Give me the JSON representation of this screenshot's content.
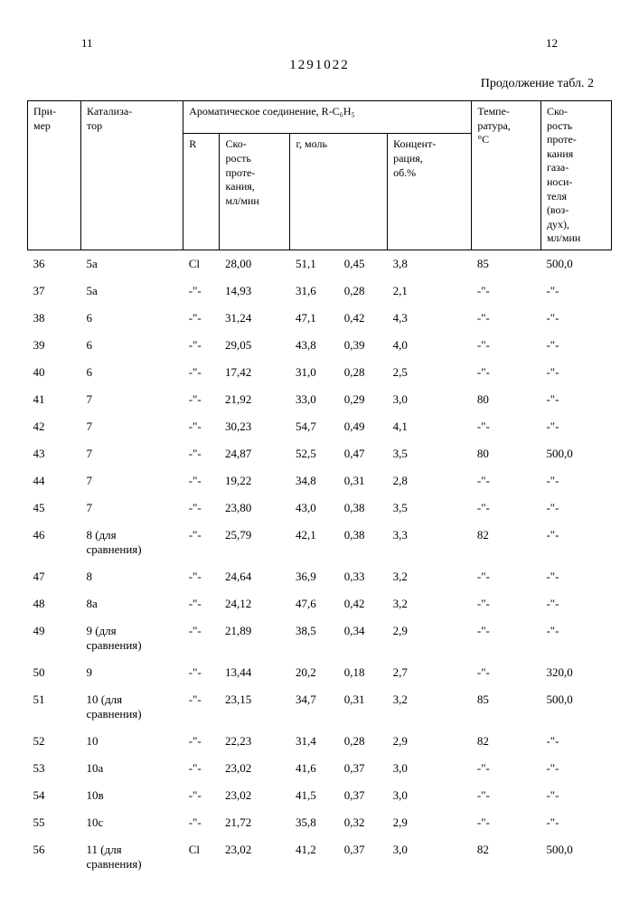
{
  "header": {
    "left_page": "11",
    "pub_number": "1291022",
    "right_page": "12",
    "continuation": "Продолжение табл. 2"
  },
  "table": {
    "columns": {
      "c1": "При-\nмер",
      "c2": "Катализа-\nтор",
      "c3_group": "Ароматическое соединение, R-C₆H₅",
      "c3a": "R",
      "c3b": "Ско-\nрость\nпроте-\nкания,\nмл/мин",
      "c3c": "г, моль",
      "c3d": "Концент-\nрация,\nоб.%",
      "c4": "Темпе-\nратура,\n°С",
      "c5": "Ско-\nрость\nпроте-\nкания\nгаза-\nноси-\nтеля\n(воз-\nдух),\nмл/мин"
    },
    "rows": [
      {
        "ex": "36",
        "cat": "5а",
        "r": "Cl",
        "rate": "28,00",
        "g": "51,1",
        "mol": "0,45",
        "conc": "3,8",
        "temp": "85",
        "flow": "500,0"
      },
      {
        "ex": "37",
        "cat": "5а",
        "r": "-\"-",
        "rate": "14,93",
        "g": "31,6",
        "mol": "0,28",
        "conc": "2,1",
        "temp": "-\"-",
        "flow": "-\"-"
      },
      {
        "ex": "38",
        "cat": "6",
        "r": "-\"-",
        "rate": "31,24",
        "g": "47,1",
        "mol": "0,42",
        "conc": "4,3",
        "temp": "-\"-",
        "flow": "-\"-"
      },
      {
        "ex": "39",
        "cat": "6",
        "r": "-\"-",
        "rate": "29,05",
        "g": "43,8",
        "mol": "0,39",
        "conc": "4,0",
        "temp": "-\"-",
        "flow": "-\"-"
      },
      {
        "ex": "40",
        "cat": "6",
        "r": "-\"-",
        "rate": "17,42",
        "g": "31,0",
        "mol": "0,28",
        "conc": "2,5",
        "temp": "-\"-",
        "flow": "-\"-"
      },
      {
        "ex": "41",
        "cat": "7",
        "r": "-\"-",
        "rate": "21,92",
        "g": "33,0",
        "mol": "0,29",
        "conc": "3,0",
        "temp": "80",
        "flow": "-\"-"
      },
      {
        "ex": "42",
        "cat": "7",
        "r": "-\"-",
        "rate": "30,23",
        "g": "54,7",
        "mol": "0,49",
        "conc": "4,1",
        "temp": "-\"-",
        "flow": "-\"-"
      },
      {
        "ex": "43",
        "cat": "7",
        "r": "-\"-",
        "rate": "24,87",
        "g": "52,5",
        "mol": "0,47",
        "conc": "3,5",
        "temp": "80",
        "flow": "500,0"
      },
      {
        "ex": "44",
        "cat": "7",
        "r": "-\"-",
        "rate": "19,22",
        "g": "34,8",
        "mol": "0,31",
        "conc": "2,8",
        "temp": "-\"-",
        "flow": "-\"-"
      },
      {
        "ex": "45",
        "cat": "7",
        "r": "-\"-",
        "rate": "23,80",
        "g": "43,0",
        "mol": "0,38",
        "conc": "3,5",
        "temp": "-\"-",
        "flow": "-\"-"
      },
      {
        "ex": "46",
        "cat": "8 (для\nсравнения)",
        "r": "-\"-",
        "rate": "25,79",
        "g": "42,1",
        "mol": "0,38",
        "conc": "3,3",
        "temp": "82",
        "flow": "-\"-"
      },
      {
        "ex": "47",
        "cat": "8",
        "r": "-\"-",
        "rate": "24,64",
        "g": "36,9",
        "mol": "0,33",
        "conc": "3,2",
        "temp": "-\"-",
        "flow": "-\"-"
      },
      {
        "ex": "48",
        "cat": "8а",
        "r": "-\"-",
        "rate": "24,12",
        "g": "47,6",
        "mol": "0,42",
        "conc": "3,2",
        "temp": "-\"-",
        "flow": "-\"-"
      },
      {
        "ex": "49",
        "cat": "9 (для\nсравнения)",
        "r": "-\"-",
        "rate": "21,89",
        "g": "38,5",
        "mol": "0,34",
        "conc": "2,9",
        "temp": "-\"-",
        "flow": "-\"-"
      },
      {
        "ex": "50",
        "cat": "9",
        "r": "-\"-",
        "rate": "13,44",
        "g": "20,2",
        "mol": "0,18",
        "conc": "2,7",
        "temp": "-\"-",
        "flow": "320,0"
      },
      {
        "ex": "51",
        "cat": "10 (для\nсравнения)",
        "r": "-\"-",
        "rate": "23,15",
        "g": "34,7",
        "mol": "0,31",
        "conc": "3,2",
        "temp": "85",
        "flow": "500,0"
      },
      {
        "ex": "52",
        "cat": "10",
        "r": "-\"-",
        "rate": "22,23",
        "g": "31,4",
        "mol": "0,28",
        "conc": "2,9",
        "temp": "82",
        "flow": "-\"-"
      },
      {
        "ex": "53",
        "cat": "10а",
        "r": "-\"-",
        "rate": "23,02",
        "g": "41,6",
        "mol": "0,37",
        "conc": "3,0",
        "temp": "-\"-",
        "flow": "-\"-"
      },
      {
        "ex": "54",
        "cat": "10в",
        "r": "-\"-",
        "rate": "23,02",
        "g": "41,5",
        "mol": "0,37",
        "conc": "3,0",
        "temp": "-\"-",
        "flow": "-\"-"
      },
      {
        "ex": "55",
        "cat": "10с",
        "r": "-\"-",
        "rate": "21,72",
        "g": "35,8",
        "mol": "0,32",
        "conc": "2,9",
        "temp": "-\"-",
        "flow": "-\"-"
      },
      {
        "ex": "56",
        "cat": "11 (для\nсравнения)",
        "r": "Cl",
        "rate": "23,02",
        "g": "41,2",
        "mol": "0,37",
        "conc": "3,0",
        "temp": "82",
        "flow": "500,0"
      }
    ]
  }
}
